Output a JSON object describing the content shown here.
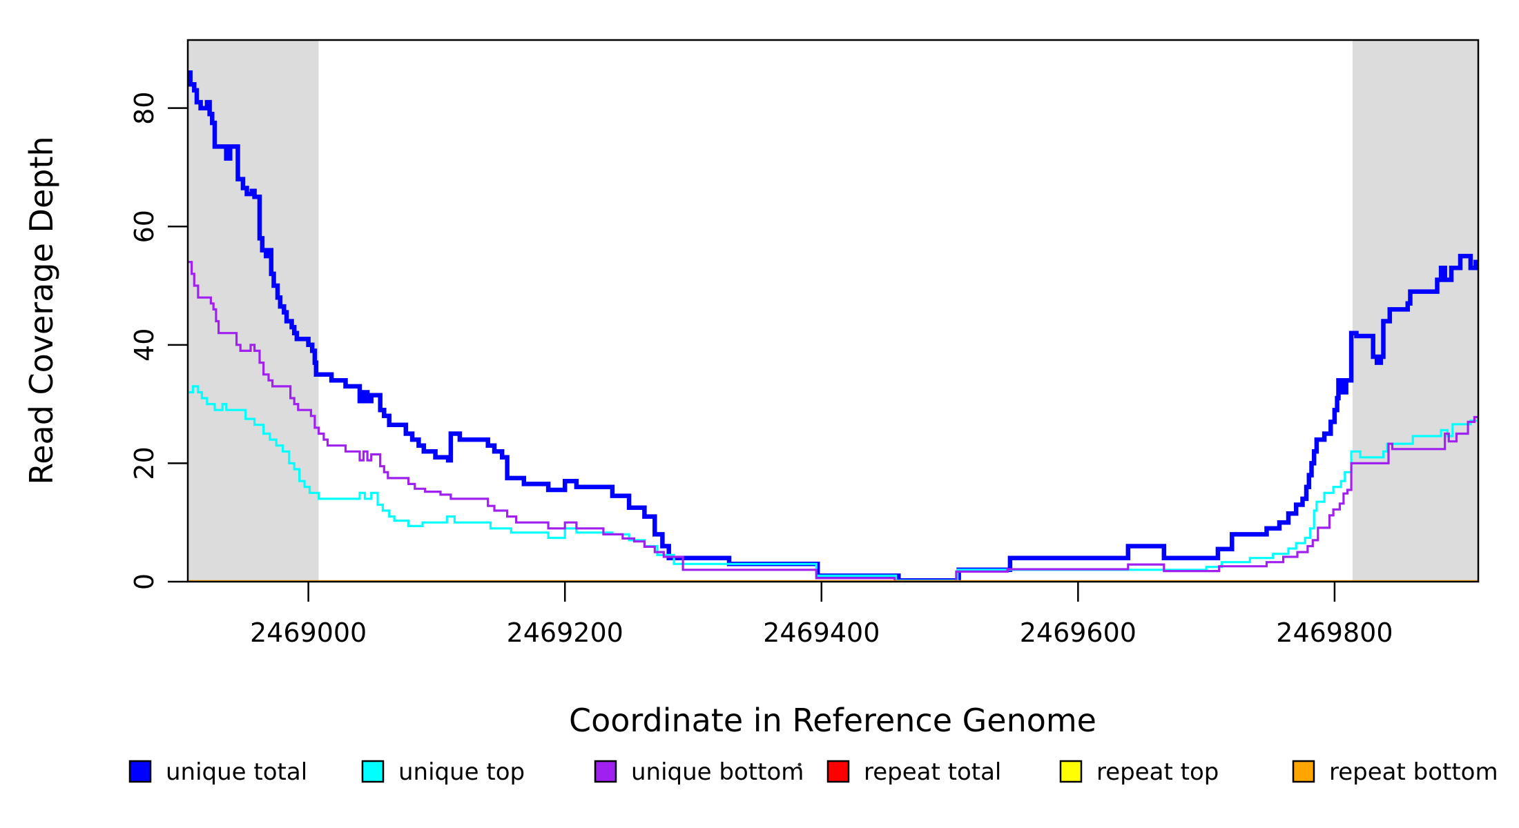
{
  "chart_data": {
    "type": "line",
    "step": true,
    "title": "",
    "xlabel": "Coordinate in Reference Genome",
    "ylabel": "Read Coverage Depth",
    "xlim": [
      2468906,
      2469912
    ],
    "ylim": [
      0,
      91.5
    ],
    "xticks": [
      2469000,
      2469200,
      2469400,
      2469600,
      2469800
    ],
    "yticks": [
      0,
      20,
      40,
      60,
      80
    ],
    "grid": false,
    "legend_position": "bottom",
    "background_color": "#FFFFFF",
    "axis_color": "#000000",
    "shaded_regions": [
      {
        "x0": 2468906,
        "x1": 2469008,
        "color": "#DCDCDC"
      },
      {
        "x0": 2469814,
        "x1": 2469912,
        "color": "#DCDCDC"
      }
    ],
    "series": [
      {
        "name": "unique total",
        "color": "#0000FF",
        "line_width": 6.5,
        "points": [
          [
            2468906,
            86
          ],
          [
            2468908,
            84
          ],
          [
            2468911,
            83
          ],
          [
            2468913,
            81
          ],
          [
            2468916,
            80
          ],
          [
            2468921,
            81
          ],
          [
            2468923,
            79
          ],
          [
            2468925,
            77.5
          ],
          [
            2468927,
            73.5
          ],
          [
            2468936,
            71.5
          ],
          [
            2468939,
            73.5
          ],
          [
            2468945,
            68
          ],
          [
            2468949,
            66.5
          ],
          [
            2468952,
            65.5
          ],
          [
            2468956,
            66
          ],
          [
            2468958,
            65
          ],
          [
            2468962,
            58
          ],
          [
            2468964,
            56
          ],
          [
            2468967,
            55
          ],
          [
            2468969,
            56
          ],
          [
            2468971,
            52
          ],
          [
            2468973,
            50
          ],
          [
            2468976,
            48
          ],
          [
            2468978,
            46.5
          ],
          [
            2468981,
            45.5
          ],
          [
            2468983,
            44
          ],
          [
            2468987,
            43
          ],
          [
            2468989,
            42
          ],
          [
            2468991,
            41
          ],
          [
            2469000,
            40
          ],
          [
            2469003,
            39
          ],
          [
            2469005,
            37
          ],
          [
            2469006,
            35
          ],
          [
            2469018,
            34
          ],
          [
            2469029,
            33
          ],
          [
            2469040,
            30.5
          ],
          [
            2469043,
            32
          ],
          [
            2469046,
            30.5
          ],
          [
            2469049,
            31.5
          ],
          [
            2469056,
            29
          ],
          [
            2469059,
            28
          ],
          [
            2469063,
            26.5
          ],
          [
            2469076,
            25
          ],
          [
            2469081,
            24
          ],
          [
            2469086,
            23
          ],
          [
            2469090,
            22
          ],
          [
            2469099,
            21
          ],
          [
            2469109,
            20.5
          ],
          [
            2469111,
            25
          ],
          [
            2469118,
            24
          ],
          [
            2469140,
            23
          ],
          [
            2469145,
            22
          ],
          [
            2469151,
            21
          ],
          [
            2469155,
            17.5
          ],
          [
            2469168,
            16.5
          ],
          [
            2469187,
            15.5
          ],
          [
            2469200,
            17
          ],
          [
            2469209,
            16
          ],
          [
            2469237,
            14.5
          ],
          [
            2469250,
            12.5
          ],
          [
            2469262,
            11
          ],
          [
            2469270,
            8
          ],
          [
            2469276,
            6
          ],
          [
            2469281,
            4
          ],
          [
            2469328,
            3
          ],
          [
            2469397,
            1
          ],
          [
            2469460,
            0.2
          ],
          [
            2469507,
            2
          ],
          [
            2469547,
            4
          ],
          [
            2469639,
            6
          ],
          [
            2469667,
            4
          ],
          [
            2469709,
            5.5
          ],
          [
            2469720,
            8
          ],
          [
            2469747,
            9
          ],
          [
            2469757,
            10
          ],
          [
            2469764,
            11.5
          ],
          [
            2469770,
            13
          ],
          [
            2469775,
            14
          ],
          [
            2469778,
            16
          ],
          [
            2469780,
            18
          ],
          [
            2469782,
            20
          ],
          [
            2469784,
            22
          ],
          [
            2469786,
            24
          ],
          [
            2469792,
            25
          ],
          [
            2469797,
            27
          ],
          [
            2469800,
            29
          ],
          [
            2469802,
            31
          ],
          [
            2469803,
            34
          ],
          [
            2469806,
            32
          ],
          [
            2469809,
            34
          ],
          [
            2469813,
            42
          ],
          [
            2469817,
            41.5
          ],
          [
            2469830,
            38
          ],
          [
            2469833,
            37
          ],
          [
            2469836,
            38
          ],
          [
            2469838,
            44
          ],
          [
            2469843,
            46
          ],
          [
            2469857,
            47
          ],
          [
            2469859,
            49
          ],
          [
            2469880,
            51
          ],
          [
            2469883,
            53
          ],
          [
            2469886,
            51
          ],
          [
            2469891,
            53
          ],
          [
            2469898,
            55
          ],
          [
            2469906,
            53
          ],
          [
            2469910,
            54
          ]
        ]
      },
      {
        "name": "unique top",
        "color": "#00FFFF",
        "line_width": 3.2,
        "points": [
          [
            2468906,
            32
          ],
          [
            2468910,
            33
          ],
          [
            2468914,
            32
          ],
          [
            2468917,
            31
          ],
          [
            2468921,
            30
          ],
          [
            2468927,
            29
          ],
          [
            2468933,
            30
          ],
          [
            2468936,
            29
          ],
          [
            2468951,
            27.5
          ],
          [
            2468958,
            26.5
          ],
          [
            2468965,
            25
          ],
          [
            2468970,
            24
          ],
          [
            2468975,
            23
          ],
          [
            2468980,
            22
          ],
          [
            2468985,
            20
          ],
          [
            2468989,
            19
          ],
          [
            2468993,
            17
          ],
          [
            2468997,
            16
          ],
          [
            2469001,
            15
          ],
          [
            2469008,
            14
          ],
          [
            2469040,
            15
          ],
          [
            2469044,
            14
          ],
          [
            2469049,
            15
          ],
          [
            2469054,
            13
          ],
          [
            2469058,
            12
          ],
          [
            2469063,
            11
          ],
          [
            2469067,
            10.3
          ],
          [
            2469078,
            9.4
          ],
          [
            2469089,
            10
          ],
          [
            2469108,
            11
          ],
          [
            2469114,
            10
          ],
          [
            2469142,
            9
          ],
          [
            2469158,
            8.3
          ],
          [
            2469187,
            7.4
          ],
          [
            2469200,
            9
          ],
          [
            2469209,
            8.3
          ],
          [
            2469237,
            8
          ],
          [
            2469250,
            7
          ],
          [
            2469262,
            6
          ],
          [
            2469272,
            4.5
          ],
          [
            2469285,
            3
          ],
          [
            2469396,
            1
          ],
          [
            2469458,
            0.2
          ],
          [
            2469506,
            2
          ],
          [
            2469545,
            2
          ],
          [
            2469700,
            2.5
          ],
          [
            2469712,
            3.3
          ],
          [
            2469734,
            4
          ],
          [
            2469752,
            4.7
          ],
          [
            2469764,
            5.6
          ],
          [
            2469770,
            6.5
          ],
          [
            2469777,
            7.4
          ],
          [
            2469781,
            9
          ],
          [
            2469784,
            12
          ],
          [
            2469786,
            13.5
          ],
          [
            2469792,
            15
          ],
          [
            2469799,
            16
          ],
          [
            2469805,
            17
          ],
          [
            2469808,
            18.5
          ],
          [
            2469813,
            22
          ],
          [
            2469820,
            21
          ],
          [
            2469838,
            22
          ],
          [
            2469841,
            23.3
          ],
          [
            2469861,
            24.6
          ],
          [
            2469883,
            25.6
          ],
          [
            2469888,
            24.6
          ],
          [
            2469892,
            26.6
          ],
          [
            2469906,
            27.2
          ]
        ]
      },
      {
        "name": "unique bottom",
        "color": "#A020F0",
        "line_width": 3.2,
        "points": [
          [
            2468906,
            54
          ],
          [
            2468909,
            52
          ],
          [
            2468911,
            50
          ],
          [
            2468914,
            48
          ],
          [
            2468924,
            47
          ],
          [
            2468926,
            46
          ],
          [
            2468928,
            44
          ],
          [
            2468930,
            42
          ],
          [
            2468944,
            40
          ],
          [
            2468947,
            39
          ],
          [
            2468955,
            40
          ],
          [
            2468958,
            39
          ],
          [
            2468962,
            37
          ],
          [
            2468965,
            35
          ],
          [
            2468969,
            34
          ],
          [
            2468972,
            33
          ],
          [
            2468986,
            31
          ],
          [
            2468989,
            30
          ],
          [
            2468992,
            29
          ],
          [
            2469002,
            28
          ],
          [
            2469005,
            26
          ],
          [
            2469008,
            25
          ],
          [
            2469012,
            24
          ],
          [
            2469015,
            23
          ],
          [
            2469029,
            22
          ],
          [
            2469040,
            20.5
          ],
          [
            2469043,
            22
          ],
          [
            2469046,
            20.5
          ],
          [
            2469049,
            21.5
          ],
          [
            2469056,
            19.5
          ],
          [
            2469059,
            18.5
          ],
          [
            2469062,
            17.5
          ],
          [
            2469078,
            16.5
          ],
          [
            2469083,
            15.7
          ],
          [
            2469091,
            15.2
          ],
          [
            2469103,
            14.7
          ],
          [
            2469111,
            14
          ],
          [
            2469140,
            12.8
          ],
          [
            2469145,
            12
          ],
          [
            2469155,
            11
          ],
          [
            2469162,
            10
          ],
          [
            2469187,
            9
          ],
          [
            2469200,
            10
          ],
          [
            2469209,
            9
          ],
          [
            2469230,
            8
          ],
          [
            2469245,
            7.3
          ],
          [
            2469254,
            6.8
          ],
          [
            2469262,
            5.9
          ],
          [
            2469270,
            5
          ],
          [
            2469277,
            4.2
          ],
          [
            2469292,
            2
          ],
          [
            2469396,
            0.6
          ],
          [
            2469457,
            0.1
          ],
          [
            2469505,
            1.7
          ],
          [
            2469545,
            2.1
          ],
          [
            2469639,
            2.9
          ],
          [
            2469667,
            1.8
          ],
          [
            2469710,
            2.6
          ],
          [
            2469747,
            3.3
          ],
          [
            2469760,
            4.2
          ],
          [
            2469771,
            5
          ],
          [
            2469779,
            6
          ],
          [
            2469783,
            7
          ],
          [
            2469787,
            9.1
          ],
          [
            2469796,
            11.2
          ],
          [
            2469799,
            12.2
          ],
          [
            2469804,
            13.2
          ],
          [
            2469807,
            14.9
          ],
          [
            2469810,
            15.5
          ],
          [
            2469813,
            20
          ],
          [
            2469842,
            23.3
          ],
          [
            2469845,
            22.4
          ],
          [
            2469886,
            25
          ],
          [
            2469889,
            23.7
          ],
          [
            2469895,
            25
          ],
          [
            2469904,
            27
          ],
          [
            2469909,
            27.8
          ]
        ]
      },
      {
        "name": "repeat total",
        "color": "#FF0000",
        "line_width": 3.2,
        "points": [
          [
            2468906,
            0
          ]
        ]
      },
      {
        "name": "repeat top",
        "color": "#FFFF00",
        "line_width": 3.2,
        "points": [
          [
            2468906,
            0
          ]
        ]
      },
      {
        "name": "repeat bottom",
        "color": "#FFA500",
        "line_width": 4.5,
        "points": [
          [
            2468906,
            0
          ]
        ]
      }
    ]
  }
}
